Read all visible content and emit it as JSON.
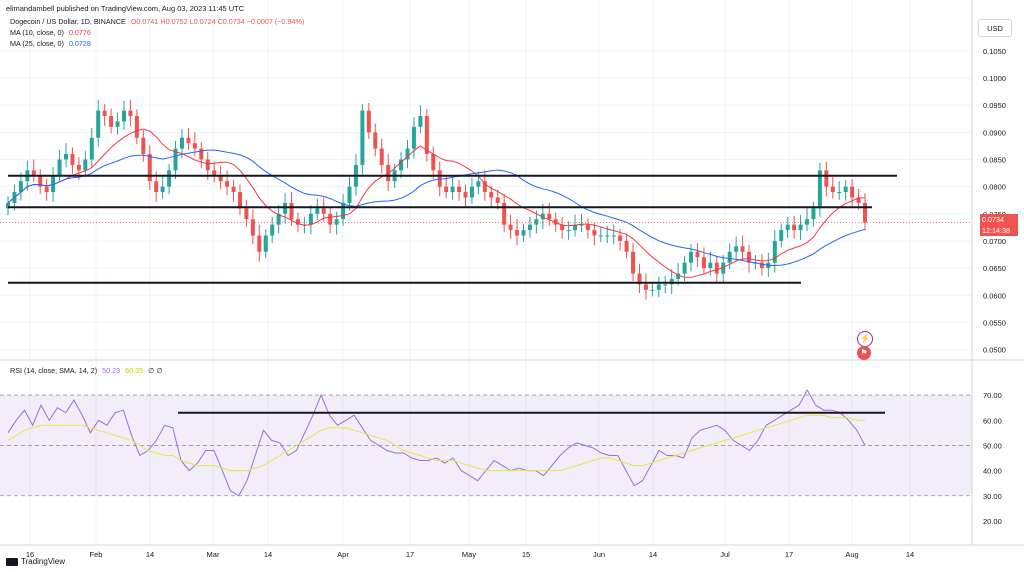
{
  "publisher": "elimandambell published on TradingView.com, Aug 03, 2023 11:45 UTC",
  "footer_brand": "TradingView",
  "currency": "USD",
  "legend": {
    "symbol": "Dogecoin / US Dollar, 1D, BINANCE",
    "ohlc": "O0.0741 H0.0752 L0.0724 C0.0734 −0.0007 (−0.94%)",
    "ma10_label": "MA (10, close, 0)",
    "ma10_value": "0.0776",
    "ma25_label": "MA (25, close, 0)",
    "ma25_value": "0.0728",
    "rsi_label": "RSI (14, close, SMA, 14, 2)",
    "rsi_value": "50.23",
    "rsi_ma_value": "60.35",
    "rsi_extra": "∅ ∅"
  },
  "price_tag": {
    "price": "0.0734",
    "countdown": "12:14:38"
  },
  "colors": {
    "up": "#26a69a",
    "down": "#ef5350",
    "ma10": "#f23645",
    "ma25": "#2962ff",
    "rsi": "#9c6ed6",
    "rsi_ma": "#e8e44a",
    "trendline": "#131722"
  },
  "chart_data": [
    {
      "type": "candlestick",
      "title": "Dogecoin / US Dollar, 1D, BINANCE",
      "ylim": [
        0.049,
        0.107
      ],
      "yticks": [
        "0.1050",
        "0.1000",
        "0.0950",
        "0.0900",
        "0.0850",
        "0.0800",
        "0.0750",
        "0.0700",
        "0.0650",
        "0.0600",
        "0.0550",
        "0.0500"
      ],
      "xticks": [
        "16",
        "Feb",
        "14",
        "Mar",
        "14",
        "Apr",
        "17",
        "May",
        "15",
        "Jun",
        "14",
        "Jul",
        "17",
        "Aug",
        "14"
      ],
      "close_series": [
        0.077,
        0.079,
        0.081,
        0.083,
        0.082,
        0.08,
        0.079,
        0.082,
        0.085,
        0.086,
        0.084,
        0.083,
        0.085,
        0.089,
        0.094,
        0.093,
        0.091,
        0.092,
        0.094,
        0.093,
        0.089,
        0.086,
        0.081,
        0.079,
        0.08,
        0.083,
        0.087,
        0.089,
        0.088,
        0.087,
        0.085,
        0.083,
        0.082,
        0.081,
        0.08,
        0.079,
        0.076,
        0.074,
        0.071,
        0.068,
        0.071,
        0.073,
        0.075,
        0.077,
        0.074,
        0.073,
        0.073,
        0.075,
        0.076,
        0.075,
        0.073,
        0.074,
        0.077,
        0.08,
        0.084,
        0.094,
        0.09,
        0.087,
        0.084,
        0.081,
        0.083,
        0.085,
        0.087,
        0.091,
        0.093,
        0.086,
        0.083,
        0.08,
        0.079,
        0.08,
        0.079,
        0.078,
        0.08,
        0.081,
        0.079,
        0.078,
        0.077,
        0.073,
        0.072,
        0.071,
        0.072,
        0.073,
        0.074,
        0.075,
        0.074,
        0.073,
        0.072,
        0.072,
        0.073,
        0.073,
        0.072,
        0.071,
        0.071,
        0.071,
        0.071,
        0.07,
        0.068,
        0.064,
        0.062,
        0.061,
        0.061,
        0.062,
        0.062,
        0.063,
        0.064,
        0.066,
        0.068,
        0.067,
        0.065,
        0.066,
        0.064,
        0.066,
        0.068,
        0.069,
        0.068,
        0.066,
        0.066,
        0.065,
        0.066,
        0.07,
        0.072,
        0.073,
        0.072,
        0.073,
        0.074,
        0.076,
        0.083,
        0.08,
        0.079,
        0.079,
        0.08,
        0.078,
        0.077,
        0.0734
      ],
      "horizontal_levels": [
        0.082,
        0.0762,
        0.0623
      ]
    },
    {
      "type": "line",
      "title": "RSI (14, close, SMA, 14, 2)",
      "ylim": [
        18,
        74
      ],
      "yticks": [
        "70.00",
        "60.00",
        "50.00",
        "40.00",
        "30.00",
        "20.00"
      ],
      "band": [
        30,
        70
      ],
      "midline": 50,
      "series": [
        {
          "name": "RSI",
          "values": [
            55,
            60,
            64,
            58,
            66,
            60,
            65,
            63,
            68,
            62,
            55,
            60,
            58,
            63,
            64,
            54,
            46,
            48,
            52,
            58,
            57,
            44,
            40,
            43,
            48,
            48,
            40,
            32,
            30,
            36,
            46,
            56,
            52,
            51,
            46,
            48,
            55,
            62,
            70,
            62,
            58,
            60,
            62,
            57,
            52,
            50,
            48,
            47,
            47,
            45,
            44,
            44,
            45,
            43,
            45,
            40,
            38,
            36,
            40,
            44,
            42,
            40,
            41,
            40,
            40,
            38,
            42,
            46,
            49,
            51,
            50,
            49,
            47,
            46,
            46,
            40,
            34,
            36,
            42,
            48,
            46,
            46,
            45,
            53,
            56,
            57,
            58,
            56,
            52,
            50,
            48,
            52,
            58,
            60,
            62,
            64,
            66,
            72,
            66,
            64,
            64,
            63,
            60,
            56,
            50
          ]
        },
        {
          "name": "RSI MA",
          "values": [
            52,
            54,
            56,
            57,
            58,
            58,
            58,
            58,
            58,
            58,
            57,
            56,
            55,
            54,
            53,
            52,
            50,
            48,
            47,
            46,
            46,
            44,
            43,
            42,
            42,
            42,
            41,
            40,
            40,
            40,
            41,
            42,
            44,
            46,
            48,
            50,
            52,
            54,
            56,
            57,
            57,
            57,
            56,
            55,
            54,
            53,
            52,
            50,
            48,
            47,
            46,
            45,
            44,
            44,
            44,
            43,
            42,
            41,
            40,
            40,
            40,
            40,
            40,
            40,
            40,
            40,
            40,
            40,
            41,
            42,
            43,
            44,
            45,
            45,
            44,
            43,
            42,
            42,
            43,
            44,
            45,
            46,
            47,
            48,
            49,
            50,
            51,
            52,
            53,
            54,
            55,
            56,
            57,
            58,
            59,
            60,
            61,
            62,
            62,
            62,
            61,
            61,
            61,
            60,
            60
          ]
        }
      ],
      "horizontal_levels": [
        63
      ]
    }
  ]
}
